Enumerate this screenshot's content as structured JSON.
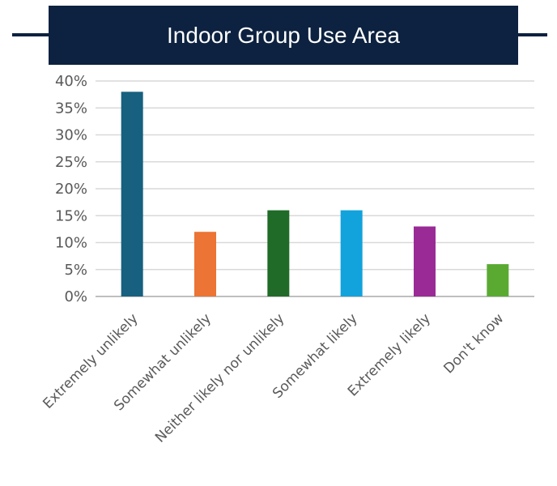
{
  "header": {
    "title": "Indoor Group Use Area"
  },
  "chart_data": {
    "type": "bar",
    "title": "Indoor Group Use Area",
    "xlabel": "",
    "ylabel": "",
    "categories": [
      "Extremely unlikely",
      "Somewhat unlikely",
      "Neither likely nor unlikely",
      "Somewhat likely",
      "Extremely likely",
      "Don't know"
    ],
    "values": [
      38,
      12,
      16,
      16,
      13,
      6
    ],
    "ylim": [
      0,
      40
    ],
    "yticks": [
      "0%",
      "5%",
      "10%",
      "15%",
      "20%",
      "25%",
      "30%",
      "35%",
      "40%"
    ],
    "grid": true,
    "legend": "none",
    "colors": [
      "#17607f",
      "#ec7434",
      "#1f6b27",
      "#12a2dc",
      "#9a2b96",
      "#5aaa32"
    ]
  }
}
